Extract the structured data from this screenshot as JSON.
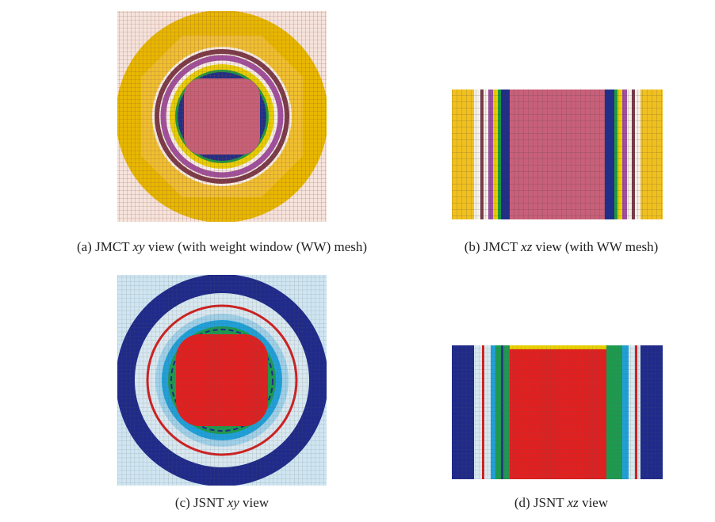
{
  "captions": [
    {
      "prefix": "(a) JMCT ",
      "italic": "xy",
      "suffix": " view (with weight window (WW) mesh)"
    },
    {
      "prefix": "(b) JMCT ",
      "italic": "xz",
      "suffix": " view (with WW mesh)"
    },
    {
      "prefix": "(c) JSNT ",
      "italic": "xy",
      "suffix": " view"
    },
    {
      "prefix": "(d) JSNT ",
      "italic": "xz",
      "suffix": " view"
    }
  ]
}
